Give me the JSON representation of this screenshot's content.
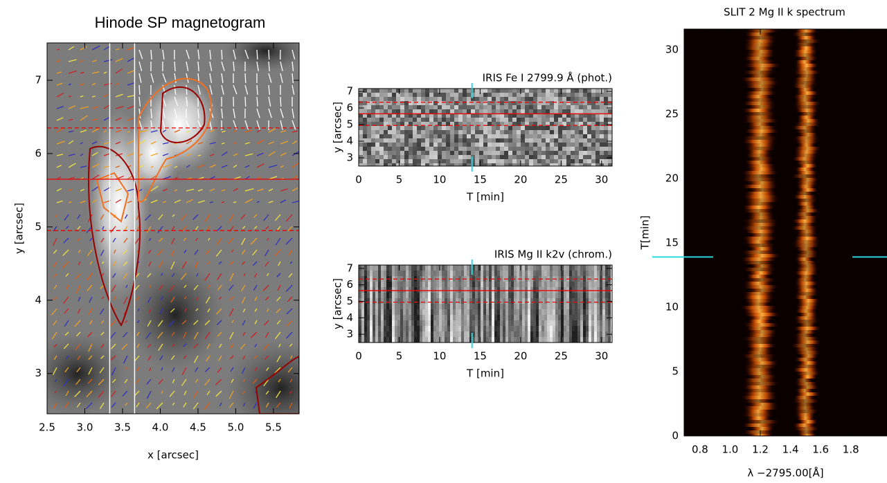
{
  "chart_data": [
    {
      "type": "heatmap",
      "title": "Hinode SP magnetogram",
      "x_label": "x [arcsec]",
      "y_label": "y [arcsec]",
      "xlim": [
        2.5,
        5.84
      ],
      "ylim": [
        2.45,
        7.51
      ],
      "xticks": [
        2.5,
        {
          "value": 3,
          "label": "3.0"
        },
        3.5,
        {
          "value": 4,
          "label": "4.0"
        },
        4.5,
        {
          "value": 5,
          "label": "5.0"
        },
        5.5
      ],
      "yticks": [
        3,
        4,
        5,
        6,
        7
      ],
      "vlines": [
        3.33,
        3.66
      ],
      "hline": 5.65,
      "hlines_dashed": [
        6.35,
        4.95
      ]
    },
    {
      "type": "heatmap",
      "title": "IRIS Fe I 2799.9 Å (phot.)",
      "x_label": "T [min]",
      "y_label": "y [arcsec]",
      "xlim": [
        0,
        31.3
      ],
      "ylim": [
        2.5,
        7.17
      ],
      "xticks": [
        0,
        5,
        10,
        15,
        20,
        25,
        30
      ],
      "yticks": [
        3,
        4,
        5,
        6,
        7
      ],
      "hline": 5.65,
      "hlines_dashed": [
        6.35,
        4.95
      ],
      "marker_x": 14
    },
    {
      "type": "heatmap",
      "title": "IRIS Mg II k2v (chrom.)",
      "x_label": "T [min]",
      "y_label": "y [arcsec]",
      "xlim": [
        0,
        31.3
      ],
      "ylim": [
        2.5,
        7.2
      ],
      "xticks": [
        0,
        5,
        10,
        15,
        20,
        25,
        30
      ],
      "yticks": [
        3,
        4,
        5,
        6,
        7
      ],
      "hline": 5.65,
      "hlines_dashed": [
        6.35,
        4.95
      ],
      "marker_x": 14
    },
    {
      "type": "heatmap",
      "title": "SLIT 2 Mg II k spectrum",
      "x_label": "λ −2795.00[Å]",
      "y_label": "T[min]",
      "xlim": [
        0.695,
        2.04
      ],
      "ylim": [
        0,
        31.6
      ],
      "xticks": [
        0.8,
        {
          "value": 1,
          "label": "1.0"
        },
        1.2,
        1.4,
        1.6,
        1.8
      ],
      "yticks": [
        0,
        5,
        10,
        15,
        20,
        25,
        30
      ],
      "marker_y": 13.9
    }
  ]
}
